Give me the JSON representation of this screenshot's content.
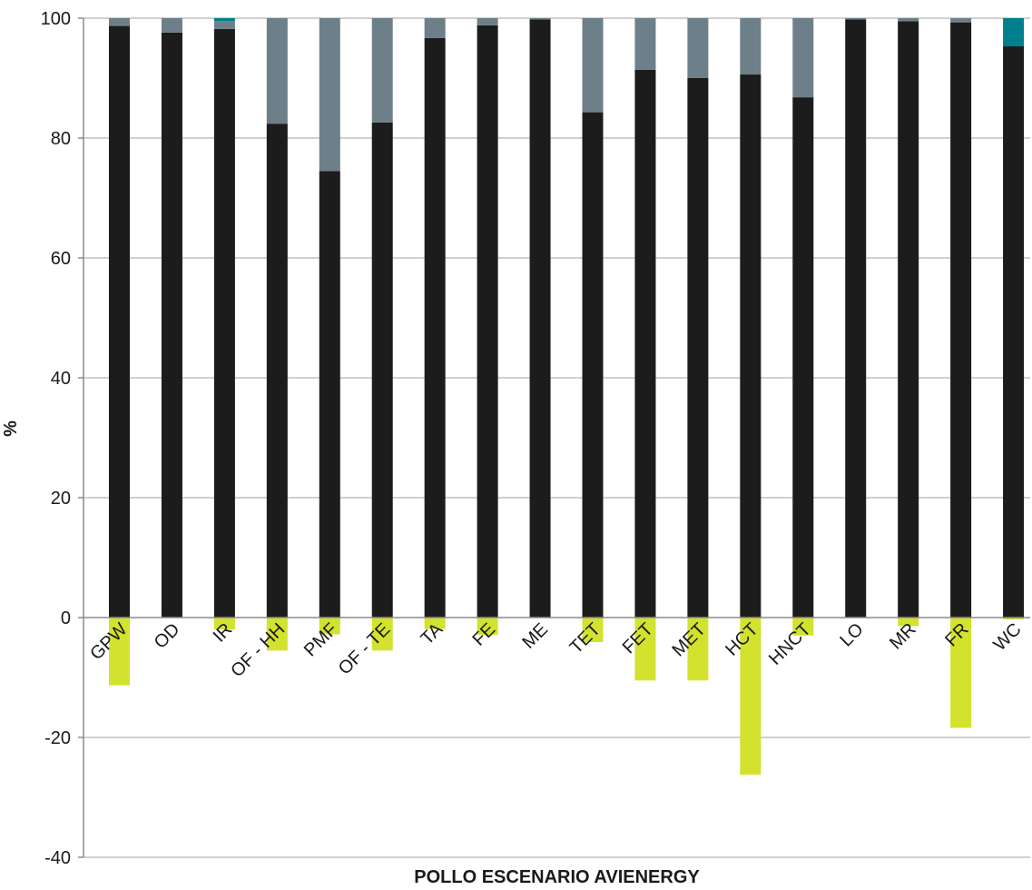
{
  "colors": {
    "main": "#1c1c1c",
    "top": "#6d7f89",
    "accent": "#00808c",
    "negative": "#d2e22e",
    "grid": "#b3b3b3",
    "axis": "#8c8c8c"
  },
  "chart_data": {
    "type": "bar",
    "stacked": true,
    "title": "",
    "xlabel": "POLLO ESCENARIO AVIENERGY",
    "ylabel": "%",
    "ylim": [
      -40,
      100
    ],
    "yticks": [
      100,
      80,
      60,
      40,
      20,
      0,
      -20,
      -40
    ],
    "grid": true,
    "categories": [
      "GPW",
      "OD",
      "IR",
      "OF - HH",
      "PMF",
      "OF - TE",
      "TA",
      "FE",
      "ME",
      "TET",
      "FET",
      "MET",
      "HCT",
      "HNCT",
      "LO",
      "MR",
      "FR",
      "WC"
    ],
    "series": [
      {
        "color_key": "main",
        "values": [
          98.7,
          97.6,
          98.2,
          82.4,
          74.5,
          82.6,
          96.7,
          98.8,
          99.8,
          84.3,
          91.4,
          90.0,
          90.6,
          86.8,
          99.8,
          99.5,
          99.3,
          95.3
        ]
      },
      {
        "color_key": "top",
        "values": [
          1.3,
          2.4,
          1.3,
          17.6,
          25.5,
          17.4,
          3.3,
          1.2,
          0.2,
          15.7,
          8.6,
          10.0,
          9.4,
          13.2,
          0.2,
          0.5,
          0.7,
          0.0
        ]
      },
      {
        "color_key": "accent",
        "values": [
          0,
          0,
          0.5,
          0,
          0,
          0,
          0,
          0,
          0,
          0,
          0,
          0,
          0,
          0,
          0,
          0,
          0,
          4.7
        ]
      },
      {
        "color_key": "negative",
        "values": [
          -11.3,
          0,
          -2.0,
          -5.5,
          -2.8,
          -5.5,
          -1.9,
          -2.9,
          0,
          -4.1,
          -10.5,
          -10.5,
          -26.2,
          -3.0,
          0,
          -1.4,
          -18.4,
          -0.3
        ]
      }
    ]
  }
}
